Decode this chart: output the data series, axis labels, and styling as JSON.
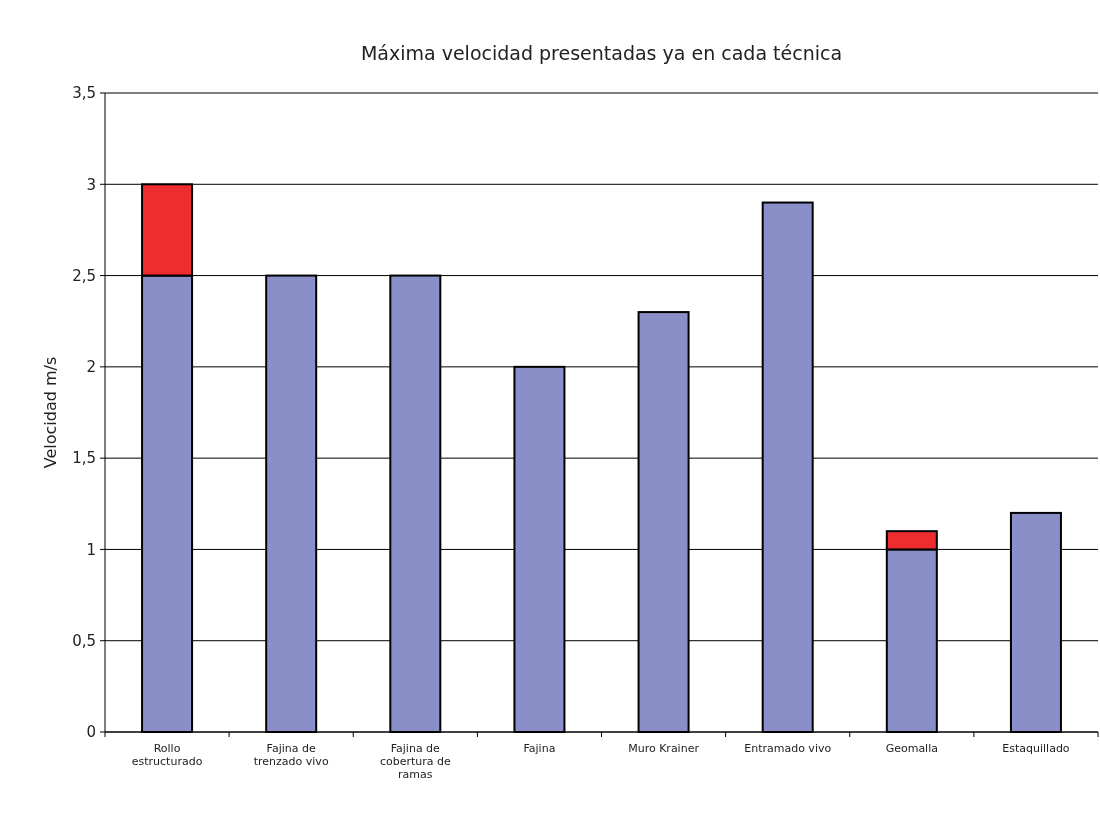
{
  "chart_data": {
    "type": "bar",
    "title": "Máxima velocidad presentadas ya en cada técnica",
    "ylabel": "Velocidad m/s",
    "stacked": true,
    "grid": "y",
    "categories": [
      "Rollo estructurado",
      "Fajina de trenzado vivo",
      "Fajina de cobertura de ramas",
      "Fajina",
      "Muro Krainer",
      "Entramado vivo",
      "Geomalla",
      "Estaquillado"
    ],
    "series": [
      {
        "color": "#8b8fc8",
        "values": [
          2.5,
          2.5,
          2.5,
          2.0,
          2.3,
          2.9,
          1.0,
          1.2
        ]
      },
      {
        "color": "#ee2e2e",
        "values": [
          0.5,
          null,
          null,
          null,
          null,
          null,
          0.1,
          null
        ]
      }
    ],
    "ylim": [
      0,
      3.5
    ],
    "yticks": [
      {
        "value": 0,
        "label": "0"
      },
      {
        "value": 0.5,
        "label": "0,5"
      },
      {
        "value": 1,
        "label": "1"
      },
      {
        "value": 1.5,
        "label": "1,5"
      },
      {
        "value": 2,
        "label": "2"
      },
      {
        "value": 2.5,
        "label": "2,5"
      },
      {
        "value": 3,
        "label": "3"
      },
      {
        "value": 3.5,
        "label": "3,5"
      }
    ]
  }
}
